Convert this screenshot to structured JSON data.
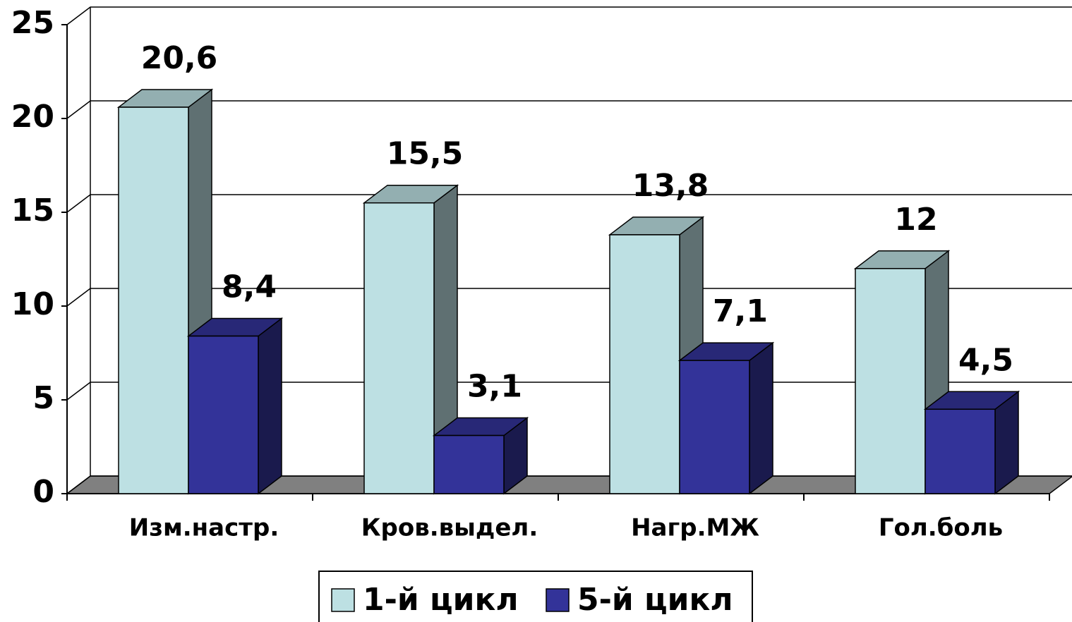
{
  "chart_data": {
    "type": "bar3d",
    "categories": [
      "Изм.настр.",
      "Кров.выдел.",
      "Нагр.МЖ",
      "Гол.боль"
    ],
    "series": [
      {
        "name": "1-й цикл",
        "color": "#bde0e3",
        "values": [
          20.6,
          15.5,
          13.8,
          12
        ],
        "value_labels": [
          "20,6",
          "15,5",
          "13,8",
          "12"
        ]
      },
      {
        "name": "5-й цикл",
        "color": "#333399",
        "values": [
          8.4,
          3.1,
          7.1,
          4.5
        ],
        "value_labels": [
          "8,4",
          "3,1",
          "7,1",
          "4,5"
        ]
      }
    ],
    "ylim": [
      0,
      25
    ],
    "yticks": [
      0,
      5,
      10,
      15,
      20,
      25
    ],
    "grid": true,
    "legend": "bottom"
  }
}
